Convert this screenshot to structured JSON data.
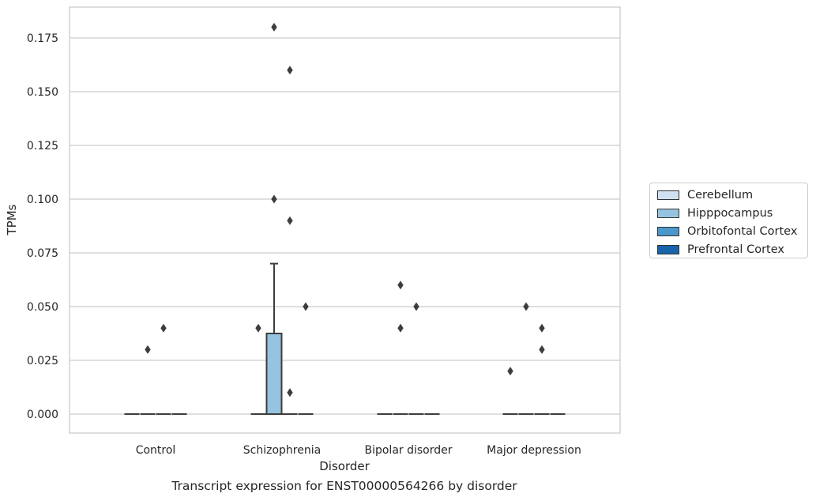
{
  "chart_data": {
    "type": "box",
    "title": "",
    "xlabel": "Disorder",
    "ylabel": "TPMs",
    "caption": "Transcript expression for ENST00000564266 by disorder",
    "ylim": [
      -0.0085,
      0.1885
    ],
    "yticks": [
      "0.000",
      "0.025",
      "0.050",
      "0.075",
      "0.100",
      "0.125",
      "0.150",
      "0.175"
    ],
    "ytick_values": [
      0,
      0.025,
      0.05,
      0.075,
      0.1,
      0.125,
      0.15,
      0.175
    ],
    "grid": "horizontal",
    "legend_position": "right",
    "categories": [
      "Control",
      "Schizophrenia",
      "Bipolar disorder",
      "Major depression"
    ],
    "series": [
      {
        "name": "Cerebellum",
        "color": "#d0e1f2"
      },
      {
        "name": "Hipppocampus",
        "color": "#94c4df"
      },
      {
        "name": "Orbitofontal Cortex",
        "color": "#4a98c9"
      },
      {
        "name": "Prefrontal Cortex",
        "color": "#1764ab"
      }
    ],
    "boxes": [
      {
        "category": "Control",
        "series": "Cerebellum",
        "min": 0,
        "q1": 0,
        "median": 0,
        "q3": 0,
        "max": 0,
        "outliers": []
      },
      {
        "category": "Control",
        "series": "Hipppocampus",
        "min": 0,
        "q1": 0,
        "median": 0,
        "q3": 0,
        "max": 0,
        "outliers": [
          0.03
        ]
      },
      {
        "category": "Control",
        "series": "Orbitofontal Cortex",
        "min": 0,
        "q1": 0,
        "median": 0,
        "q3": 0,
        "max": 0,
        "outliers": [
          0.04
        ]
      },
      {
        "category": "Control",
        "series": "Prefrontal Cortex",
        "min": 0,
        "q1": 0,
        "median": 0,
        "q3": 0,
        "max": 0,
        "outliers": []
      },
      {
        "category": "Schizophrenia",
        "series": "Cerebellum",
        "min": 0,
        "q1": 0,
        "median": 0,
        "q3": 0,
        "max": 0,
        "outliers": [
          0.04
        ]
      },
      {
        "category": "Schizophrenia",
        "series": "Hipppocampus",
        "min": 0,
        "q1": 0,
        "median": 0,
        "q3": 0.0375,
        "max": 0.07,
        "outliers": [
          0.18,
          0.1
        ]
      },
      {
        "category": "Schizophrenia",
        "series": "Orbitofontal Cortex",
        "min": 0,
        "q1": 0,
        "median": 0,
        "q3": 0,
        "max": 0,
        "outliers": [
          0.16,
          0.09,
          0.01
        ]
      },
      {
        "category": "Schizophrenia",
        "series": "Prefrontal Cortex",
        "min": 0,
        "q1": 0,
        "median": 0,
        "q3": 0,
        "max": 0,
        "outliers": [
          0.05
        ]
      },
      {
        "category": "Bipolar disorder",
        "series": "Cerebellum",
        "min": 0,
        "q1": 0,
        "median": 0,
        "q3": 0,
        "max": 0,
        "outliers": []
      },
      {
        "category": "Bipolar disorder",
        "series": "Hipppocampus",
        "min": 0,
        "q1": 0,
        "median": 0,
        "q3": 0,
        "max": 0,
        "outliers": [
          0.06,
          0.04
        ]
      },
      {
        "category": "Bipolar disorder",
        "series": "Orbitofontal Cortex",
        "min": 0,
        "q1": 0,
        "median": 0,
        "q3": 0,
        "max": 0,
        "outliers": [
          0.05
        ]
      },
      {
        "category": "Bipolar disorder",
        "series": "Prefrontal Cortex",
        "min": 0,
        "q1": 0,
        "median": 0,
        "q3": 0,
        "max": 0,
        "outliers": []
      },
      {
        "category": "Major depression",
        "series": "Cerebellum",
        "min": 0,
        "q1": 0,
        "median": 0,
        "q3": 0,
        "max": 0,
        "outliers": [
          0.02
        ]
      },
      {
        "category": "Major depression",
        "series": "Hipppocampus",
        "min": 0,
        "q1": 0,
        "median": 0,
        "q3": 0,
        "max": 0,
        "outliers": [
          0.05
        ]
      },
      {
        "category": "Major depression",
        "series": "Orbitofontal Cortex",
        "min": 0,
        "q1": 0,
        "median": 0,
        "q3": 0,
        "max": 0,
        "outliers": [
          0.04,
          0.03
        ]
      },
      {
        "category": "Major depression",
        "series": "Prefrontal Cortex",
        "min": 0,
        "q1": 0,
        "median": 0,
        "q3": 0,
        "max": 0,
        "outliers": []
      }
    ]
  }
}
